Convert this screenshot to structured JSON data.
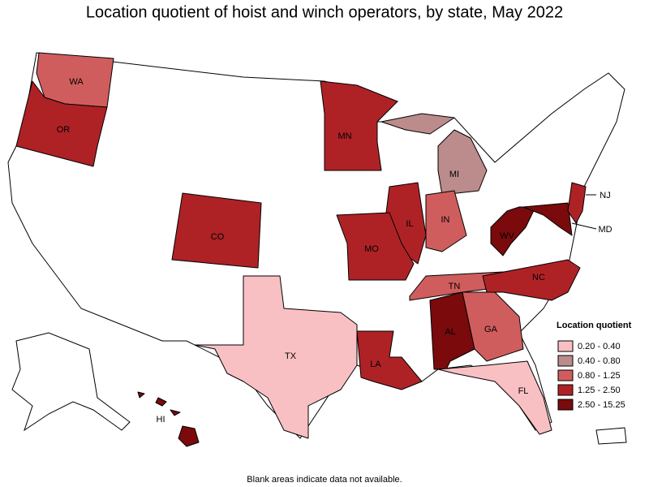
{
  "title": "Location quotient of hoist and winch operators, by state, May 2022",
  "note": "Blank areas indicate data not available.",
  "legend": {
    "title": "Location quotient",
    "items": [
      {
        "label": "0.20 - 0.40",
        "color": "#f9c0c4"
      },
      {
        "label": "0.40 - 0.80",
        "color": "#bc8b8c"
      },
      {
        "label": "0.80 - 1.25",
        "color": "#d05d5d"
      },
      {
        "label": "1.25 - 2.50",
        "color": "#ae2226"
      },
      {
        "label": "2.50 - 15.25",
        "color": "#7a0a0c"
      }
    ]
  },
  "states": [
    {
      "abbr": "WA",
      "color": "#d05d5d"
    },
    {
      "abbr": "OR",
      "color": "#ae2226"
    },
    {
      "abbr": "MN",
      "color": "#ae2226"
    },
    {
      "abbr": "MI",
      "color": "#bc8b8c"
    },
    {
      "abbr": "IL",
      "color": "#ae2226"
    },
    {
      "abbr": "IN",
      "color": "#d05d5d"
    },
    {
      "abbr": "CO",
      "color": "#ae2226"
    },
    {
      "abbr": "MO",
      "color": "#ae2226"
    },
    {
      "abbr": "TX",
      "color": "#f9c0c4"
    },
    {
      "abbr": "LA",
      "color": "#ae2226"
    },
    {
      "abbr": "AL",
      "color": "#7a0a0c"
    },
    {
      "abbr": "GA",
      "color": "#d05d5d"
    },
    {
      "abbr": "TN",
      "color": "#d05d5d"
    },
    {
      "abbr": "NC",
      "color": "#ae2226"
    },
    {
      "abbr": "WV",
      "color": "#7a0a0c"
    },
    {
      "abbr": "MD",
      "color": "#7a0a0c"
    },
    {
      "abbr": "NJ",
      "color": "#ae2226"
    },
    {
      "abbr": "FL",
      "color": "#f9c0c4"
    },
    {
      "abbr": "HI",
      "color": "#7a0a0c"
    }
  ]
}
